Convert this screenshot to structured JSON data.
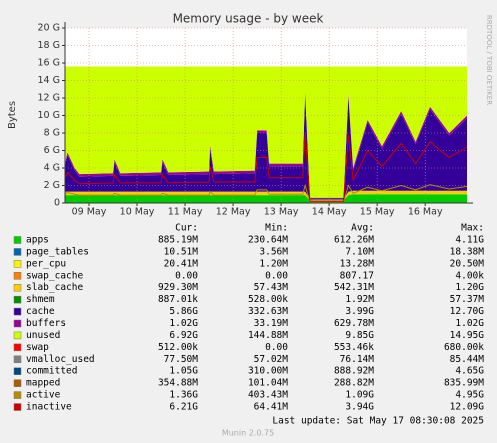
{
  "chart_data": {
    "type": "area",
    "title": "Memory usage - by week",
    "y_label": "Bytes",
    "side_text": "RRDTOOL / TOBI OETIKER",
    "x": [
      0,
      0.05,
      0.2,
      0.3,
      1.0,
      1.03,
      1.15,
      2.0,
      2.03,
      2.15,
      3.0,
      3.02,
      3.1,
      3.95,
      4.0,
      4.2,
      4.25,
      4.95,
      5.0,
      5.1,
      5.8,
      5.9,
      6.0,
      6.3,
      6.6,
      7.0,
      7.3,
      7.6,
      8.0,
      8.37
    ],
    "xlim": [
      0,
      8.37
    ],
    "xticks": [
      {
        "value": 0.5,
        "label": "09 May"
      },
      {
        "value": 1.5,
        "label": "10 May"
      },
      {
        "value": 2.5,
        "label": "11 May"
      },
      {
        "value": 3.5,
        "label": "12 May"
      },
      {
        "value": 4.5,
        "label": "13 May"
      },
      {
        "value": 5.5,
        "label": "14 May"
      },
      {
        "value": 6.5,
        "label": "15 May"
      },
      {
        "value": 7.5,
        "label": "16 May"
      }
    ],
    "ylim": [
      0,
      20
    ],
    "yticks": [
      0,
      {
        "value": 2,
        "label": "2 G"
      },
      {
        "value": 4,
        "label": "4 G"
      },
      {
        "value": 6,
        "label": "6 G"
      },
      {
        "value": 8,
        "label": "8 G"
      },
      {
        "value": 10,
        "label": "10 G"
      },
      {
        "value": 12,
        "label": "12 G"
      },
      {
        "value": 14,
        "label": "14 G"
      },
      {
        "value": 16,
        "label": "16 G"
      },
      {
        "value": 18,
        "label": "18 G"
      },
      {
        "value": 20,
        "label": "20 G"
      }
    ],
    "grid": true,
    "legend_headers": [
      "Cur:",
      "Min:",
      "Avg:",
      "Max:"
    ],
    "series": [
      {
        "name": "apps",
        "color": "#00CC00",
        "style": "area",
        "cur": "885.19M",
        "min": "230.64M",
        "avg": "612.26M",
        "max": "4.11G",
        "values": [
          0.9,
          0.9,
          0.9,
          0.9,
          0.9,
          0.9,
          0.9,
          0.9,
          0.9,
          0.9,
          0.9,
          0.9,
          0.9,
          0.9,
          0.9,
          0.9,
          0.9,
          0.9,
          0.9,
          0.3,
          0.3,
          0.9,
          1.0,
          1.0,
          1.0,
          1.0,
          1.0,
          1.0,
          1.0,
          1.0
        ]
      },
      {
        "name": "page_tables",
        "color": "#0066B3",
        "cur": "10.51M",
        "min": "3.56M",
        "avg": "7.10M",
        "max": "18.38M"
      },
      {
        "name": "per_cpu",
        "color": "#FFF200",
        "cur": "20.41M",
        "min": "1.20M",
        "avg": "13.28M",
        "max": "20.50M"
      },
      {
        "name": "swap_cache",
        "color": "#FF8000",
        "cur": "0.00",
        "min": "0.00",
        "avg": "807.17",
        "max": "4.00k"
      },
      {
        "name": "slab_cache",
        "color": "#FFCC00",
        "style": "area",
        "cur": "929.30M",
        "min": "57.43M",
        "avg": "542.31M",
        "max": "1.20G",
        "values": [
          0.4,
          0.4,
          0.4,
          0.4,
          0.4,
          0.4,
          0.4,
          0.4,
          0.4,
          0.4,
          0.4,
          0.4,
          0.4,
          0.4,
          0.4,
          0.4,
          0.4,
          0.4,
          0.4,
          0.1,
          0.1,
          0.4,
          0.4,
          0.4,
          0.4,
          0.4,
          0.4,
          0.4,
          0.4,
          0.4
        ]
      },
      {
        "name": "shmem",
        "color": "#008F00",
        "cur": "887.01k",
        "min": "528.00k",
        "avg": "1.92M",
        "max": "57.37M"
      },
      {
        "name": "cache",
        "color": "#330099",
        "style": "area",
        "cur": "5.86G",
        "min": "332.63M",
        "avg": "3.99G",
        "max": "12.70G",
        "values": [
          2.9,
          4.2,
          2.4,
          1.7,
          1.8,
          3.4,
          1.8,
          1.9,
          3.4,
          1.9,
          2.0,
          5.0,
          2.0,
          2.1,
          6.7,
          6.7,
          2.9,
          2.9,
          11.2,
          0.15,
          0.15,
          10.9,
          2.3,
          7.8,
          4.8,
          8.8,
          5.3,
          9.3,
          6.3,
          8.3
        ]
      },
      {
        "name": "buffers",
        "color": "#990099",
        "style": "area",
        "cur": "1.02G",
        "min": "33.19M",
        "avg": "629.78M",
        "max": "1.02G",
        "values": [
          0.3,
          0.3,
          0.3,
          0.3,
          0.3,
          0.3,
          0.3,
          0.3,
          0.3,
          0.3,
          0.3,
          0.3,
          0.3,
          0.3,
          0.3,
          0.3,
          0.3,
          0.3,
          0.3,
          0.05,
          0.05,
          0.3,
          0.3,
          0.3,
          0.3,
          0.3,
          0.3,
          0.3,
          0.3,
          0.3
        ]
      },
      {
        "name": "unused",
        "color": "#CCFF00",
        "style": "area",
        "cur": "6.92G",
        "min": "144.88M",
        "avg": "9.85G",
        "max": "14.95G",
        "values": [
          11.1,
          9.8,
          11.6,
          12.3,
          12.2,
          10.6,
          12.2,
          12.1,
          10.6,
          12.1,
          12.0,
          9.0,
          12.0,
          11.9,
          7.3,
          7.3,
          11.1,
          11.1,
          2.8,
          15.0,
          15.0,
          3.1,
          11.6,
          6.1,
          9.1,
          5.1,
          8.6,
          4.6,
          7.6,
          5.6
        ]
      },
      {
        "name": "swap",
        "color": "#FF0000",
        "cur": "512.00k",
        "min": "0.00",
        "avg": "553.46k",
        "max": "680.00k"
      },
      {
        "name": "vmalloc_used",
        "color": "#808080",
        "cur": "77.50M",
        "min": "57.02M",
        "avg": "76.14M",
        "max": "85.44M"
      },
      {
        "name": "committed",
        "color": "#00487D",
        "cur": "1.05G",
        "min": "310.00M",
        "avg": "888.92M",
        "max": "4.65G"
      },
      {
        "name": "mapped",
        "color": "#B35A00",
        "cur": "354.88M",
        "min": "101.04M",
        "avg": "288.82M",
        "max": "835.99M"
      },
      {
        "name": "active",
        "color": "#B38F00",
        "style": "line",
        "cur": "1.36G",
        "min": "403.43M",
        "avg": "1.09G",
        "max": "4.95G",
        "values": [
          1.0,
          1.2,
          1.0,
          0.9,
          0.9,
          1.1,
          0.9,
          0.9,
          1.1,
          0.9,
          0.9,
          1.3,
          0.9,
          0.9,
          1.5,
          1.5,
          1.0,
          1.0,
          2.0,
          0.1,
          0.1,
          2.0,
          1.1,
          1.8,
          1.4,
          2.0,
          1.5,
          2.1,
          1.6,
          1.9
        ]
      },
      {
        "name": "inactive",
        "color": "#CC0000",
        "style": "line",
        "cur": "6.21G",
        "min": "64.41M",
        "avg": "3.94G",
        "max": "12.09G",
        "values": [
          2.9,
          3.5,
          2.6,
          2.2,
          2.3,
          3.2,
          2.3,
          2.3,
          3.2,
          2.3,
          2.4,
          4.2,
          2.4,
          2.4,
          5.2,
          5.2,
          2.9,
          2.9,
          8.0,
          0.2,
          0.2,
          7.8,
          2.6,
          6.0,
          4.2,
          6.8,
          4.5,
          7.0,
          5.2,
          6.4
        ]
      }
    ],
    "last_update": "Last update: Sat May 17 08:30:08 2025",
    "footer": "Munin 2.0.75"
  }
}
